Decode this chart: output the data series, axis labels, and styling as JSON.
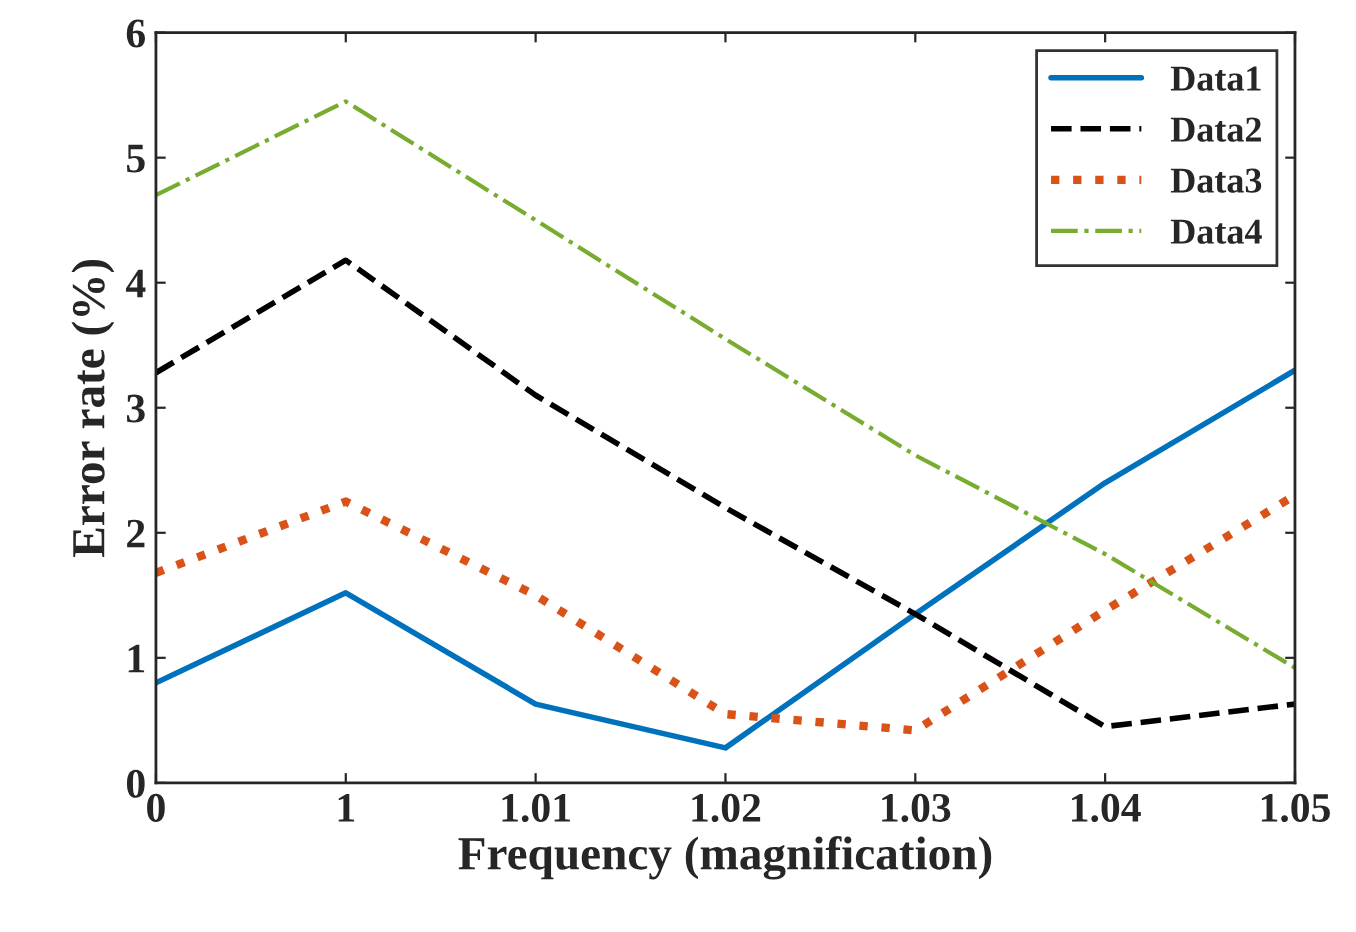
{
  "chart_data": {
    "type": "line",
    "xlabel": "Frequency (magnification)",
    "ylabel": "Error rate (%)",
    "categories": [
      "0",
      "1",
      "1.01",
      "1.02",
      "1.03",
      "1.04",
      "1.05"
    ],
    "series": [
      {
        "name": "Data1",
        "color": "#0072bd",
        "line_style": "solid",
        "values": [
          0.8,
          1.52,
          0.63,
          0.28,
          1.35,
          2.4,
          3.3
        ]
      },
      {
        "name": "Data2",
        "color": "#000000",
        "line_style": "dashed",
        "values": [
          3.28,
          4.18,
          3.1,
          2.2,
          1.35,
          0.45,
          0.63
        ]
      },
      {
        "name": "Data3",
        "color": "#d95319",
        "line_style": "dotted",
        "values": [
          1.68,
          2.25,
          1.5,
          0.55,
          0.42,
          1.38,
          2.3
        ]
      },
      {
        "name": "Data4",
        "color": "#77ac30",
        "line_style": "dashdot",
        "values": [
          4.7,
          5.45,
          4.5,
          3.55,
          2.62,
          1.83,
          0.92
        ]
      }
    ],
    "ylim": [
      0,
      6
    ],
    "yticks": [
      0,
      1,
      2,
      3,
      4,
      5,
      6
    ],
    "grid": false,
    "legend": "top right",
    "marker": "none"
  }
}
